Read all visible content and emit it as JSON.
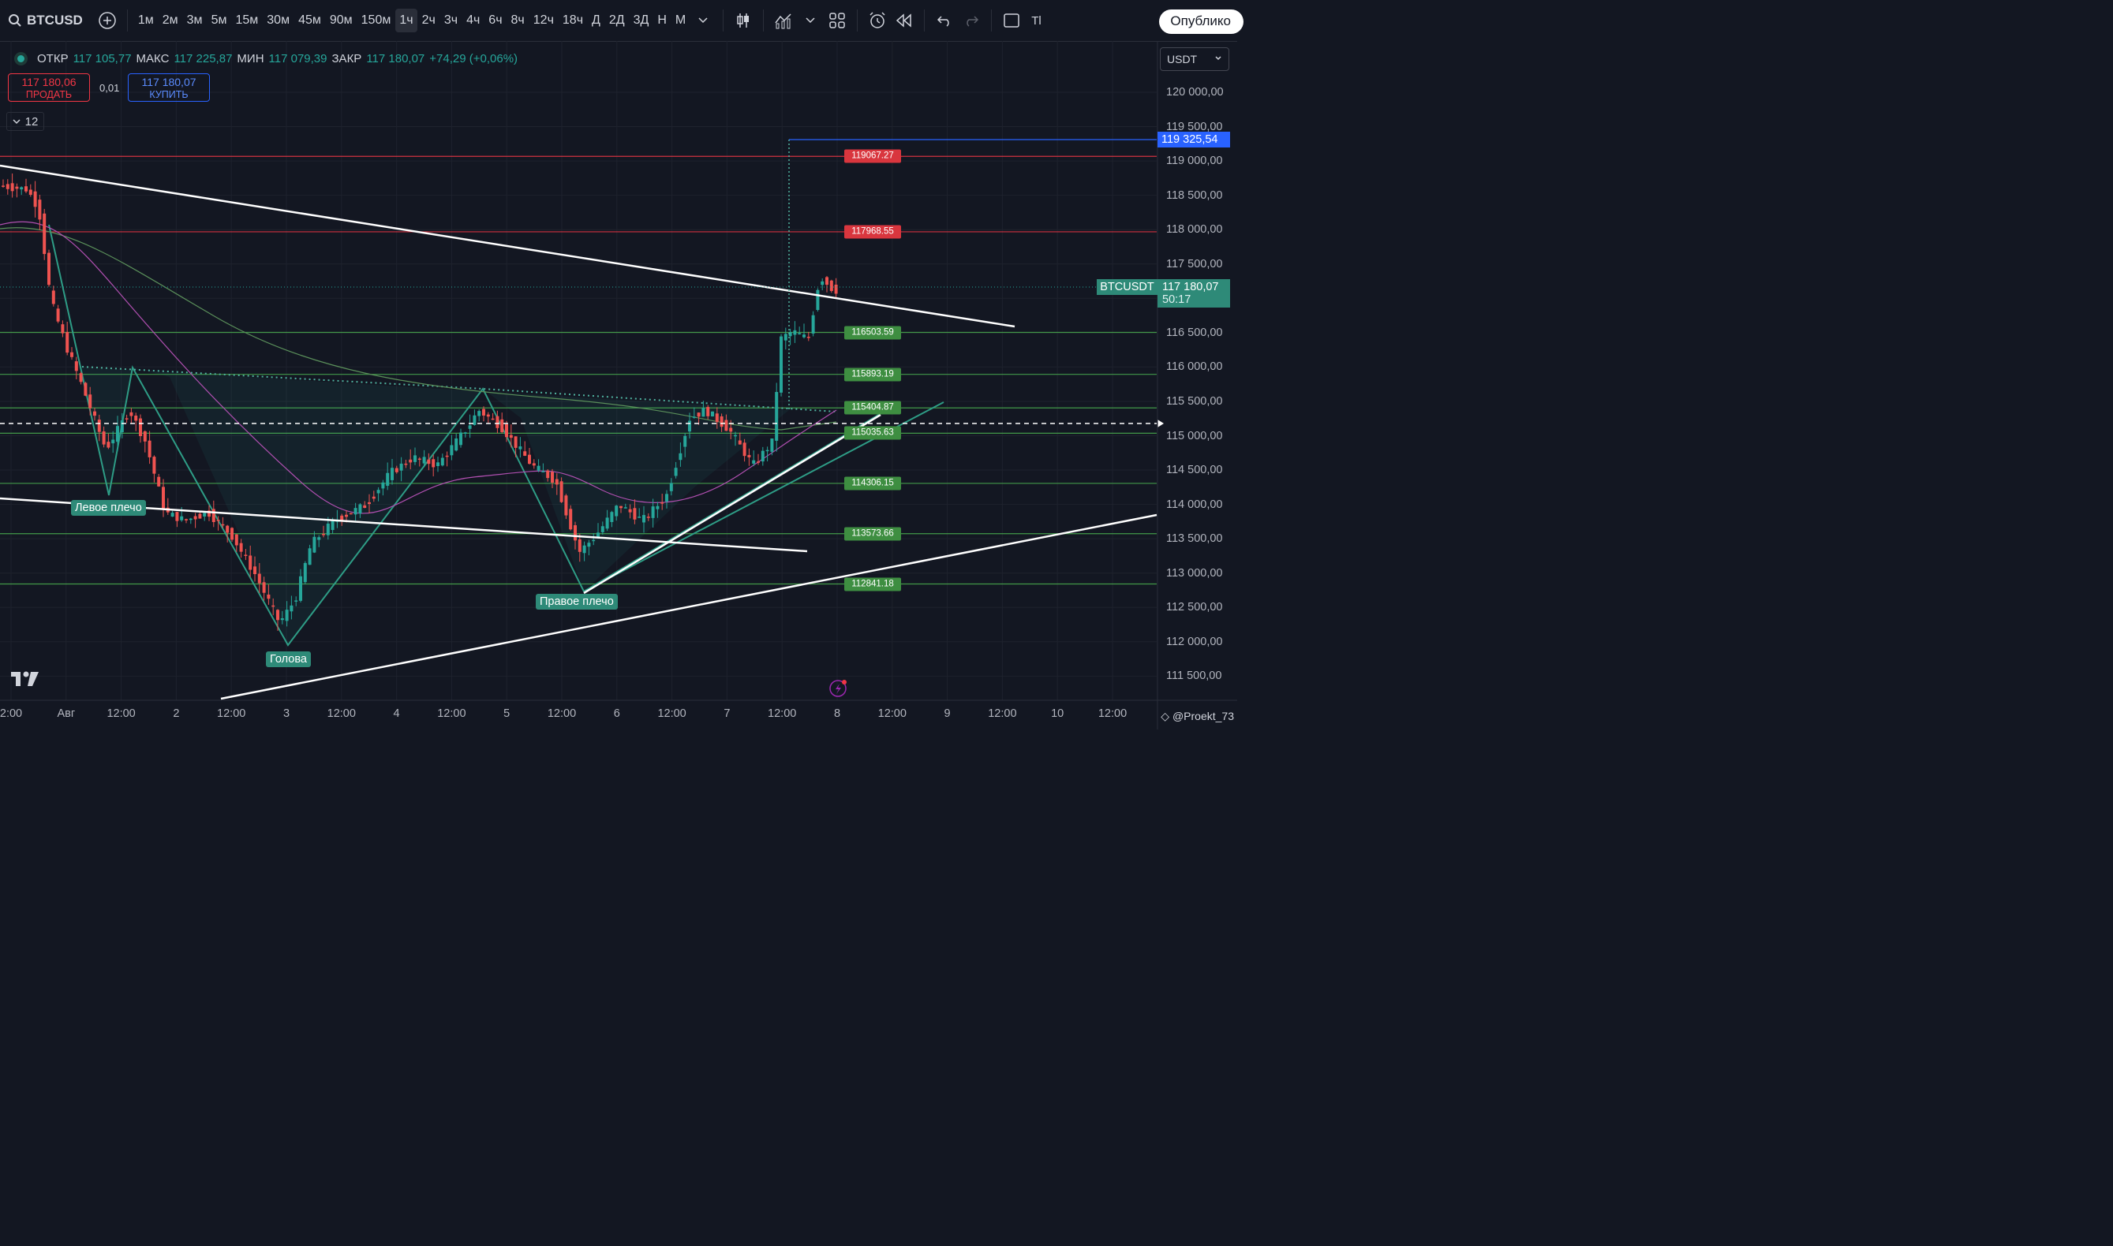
{
  "toolbar": {
    "symbol": "BTCUSD",
    "timeframes": [
      "1м",
      "2м",
      "3м",
      "5м",
      "15м",
      "30м",
      "45м",
      "90м",
      "150м",
      "1ч",
      "2ч",
      "3ч",
      "4ч",
      "6ч",
      "8ч",
      "12ч",
      "18ч",
      "Д",
      "2Д",
      "3Д",
      "Н",
      "М"
    ],
    "active_timeframe": "1ч",
    "publish_label": "Опублико",
    "tv_fragment": "Tl"
  },
  "legend": {
    "open_label": "ОТКР",
    "open": "117 105,77",
    "high_label": "МАКС",
    "high": "117 225,87",
    "low_label": "МИН",
    "low": "117 079,39",
    "close_label": "ЗАКР",
    "close": "117 180,07",
    "change": "+74,29 (+0,06%)"
  },
  "trade": {
    "sell_price": "117 180,06",
    "sell_label": "ПРОДАТЬ",
    "spread": "0,01",
    "buy_price": "117 180,07",
    "buy_label": "КУПИТЬ"
  },
  "indicators_count": "12",
  "currency": "USDT",
  "price_axis": [
    "120 000,00",
    "119 500,00",
    "119 000,00",
    "118 500,00",
    "118 000,00",
    "117 500,00",
    "117 000,00",
    "116 500,00",
    "116 000,00",
    "115 500,00",
    "115 000,00",
    "114 500,00",
    "114 000,00",
    "113 500,00",
    "113 000,00",
    "112 500,00",
    "112 000,00",
    "111 500,00"
  ],
  "axis_highlight": "119 325,54",
  "last_price": {
    "symbol": "BTCUSDT",
    "price": "117 180,07",
    "countdown": "50:17"
  },
  "levels": [
    {
      "label": "119067.27",
      "color": "red"
    },
    {
      "label": "117968.55",
      "color": "red"
    },
    {
      "label": "116503.59",
      "color": "green"
    },
    {
      "label": "115893.19",
      "color": "green"
    },
    {
      "label": "115404.87",
      "color": "green"
    },
    {
      "label": "115035.63",
      "color": "green"
    },
    {
      "label": "114306.15",
      "color": "green"
    },
    {
      "label": "113573.66",
      "color": "green"
    },
    {
      "label": "112841.18",
      "color": "green"
    }
  ],
  "pattern": {
    "left_shoulder": "Левое плечо",
    "head": "Голова",
    "right_shoulder": "Правое плечо"
  },
  "time_axis": [
    "2:00",
    "Авг",
    "12:00",
    "2",
    "12:00",
    "3",
    "12:00",
    "4",
    "12:00",
    "5",
    "12:00",
    "6",
    "12:00",
    "7",
    "12:00",
    "8",
    "12:00",
    "9",
    "12:00",
    "10",
    "12:00"
  ],
  "watermark": "@Proekt_73",
  "colors": {
    "up": "#26a69a",
    "down": "#ef5350",
    "level_green": "#4caf50",
    "level_red": "#f23645",
    "accent_blue": "#2962ff"
  }
}
